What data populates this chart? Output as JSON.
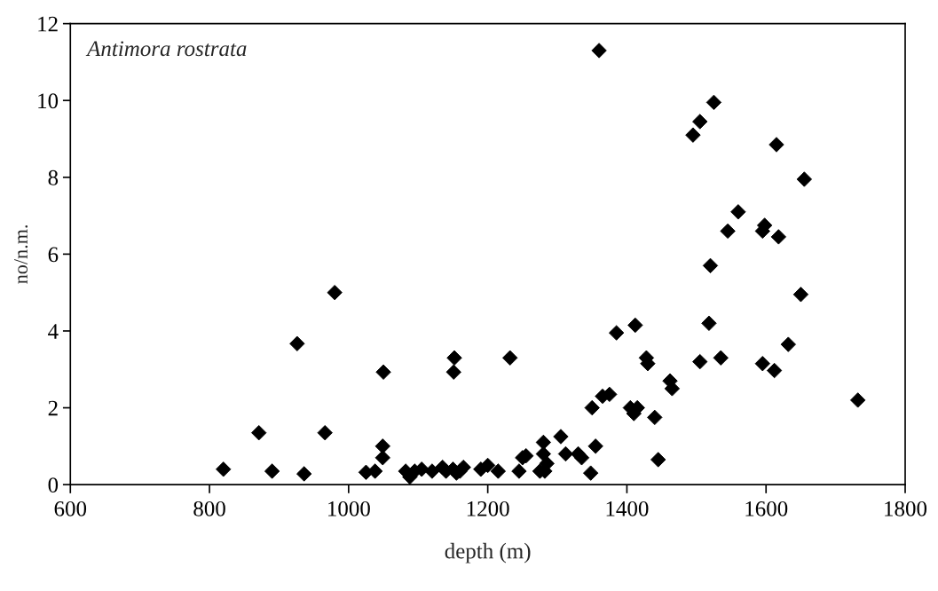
{
  "chart_data": {
    "type": "scatter",
    "xlabel": "depth (m)",
    "ylabel": "no/n.m.",
    "annotations": [
      "Antimora rostrata"
    ],
    "marker": "diamond",
    "grid": false,
    "xlim": [
      600,
      1800
    ],
    "xticks": [
      600,
      800,
      1000,
      1200,
      1400,
      1600,
      1800
    ],
    "ylim": [
      0,
      12
    ],
    "yticks": [
      0,
      2,
      4,
      6,
      8,
      10,
      12
    ],
    "series": [
      {
        "color": "#000000",
        "x": [
          820,
          871,
          890,
          936,
          926,
          966,
          980,
          1025,
          1038,
          1049,
          1049,
          1050,
          1082,
          1088,
          1095,
          1105,
          1120,
          1135,
          1140,
          1150,
          1155,
          1160,
          1165,
          1152,
          1151,
          1190,
          1200,
          1215,
          1232,
          1245,
          1250,
          1255,
          1275,
          1280,
          1280,
          1282,
          1285,
          1305,
          1312,
          1330,
          1335,
          1348,
          1350,
          1355,
          1360,
          1365,
          1375,
          1385,
          1405,
          1410,
          1412,
          1415,
          1428,
          1430,
          1440,
          1445,
          1462,
          1465,
          1495,
          1505,
          1505,
          1518,
          1520,
          1525,
          1535,
          1545,
          1560,
          1595,
          1598,
          1595,
          1612,
          1615,
          1618,
          1632,
          1650,
          1655,
          1732
        ],
        "values": [
          0.4,
          1.35,
          0.35,
          0.28,
          3.67,
          1.35,
          5.0,
          0.32,
          0.35,
          1.0,
          0.7,
          2.93,
          0.35,
          0.2,
          0.35,
          0.4,
          0.35,
          0.45,
          0.35,
          0.4,
          0.3,
          0.35,
          0.45,
          3.3,
          2.93,
          0.4,
          0.5,
          0.35,
          3.3,
          0.35,
          0.7,
          0.75,
          0.35,
          0.8,
          1.1,
          0.35,
          0.55,
          1.25,
          0.8,
          0.8,
          0.7,
          0.3,
          2.0,
          1.0,
          11.3,
          2.3,
          2.35,
          3.95,
          2.0,
          1.85,
          4.15,
          2.0,
          3.3,
          3.15,
          1.75,
          0.65,
          2.7,
          2.5,
          9.1,
          9.45,
          3.2,
          4.2,
          5.7,
          9.95,
          3.3,
          6.6,
          7.1,
          6.6,
          6.75,
          3.15,
          2.97,
          8.85,
          6.45,
          3.65,
          4.95,
          7.95,
          2.2
        ]
      }
    ]
  }
}
